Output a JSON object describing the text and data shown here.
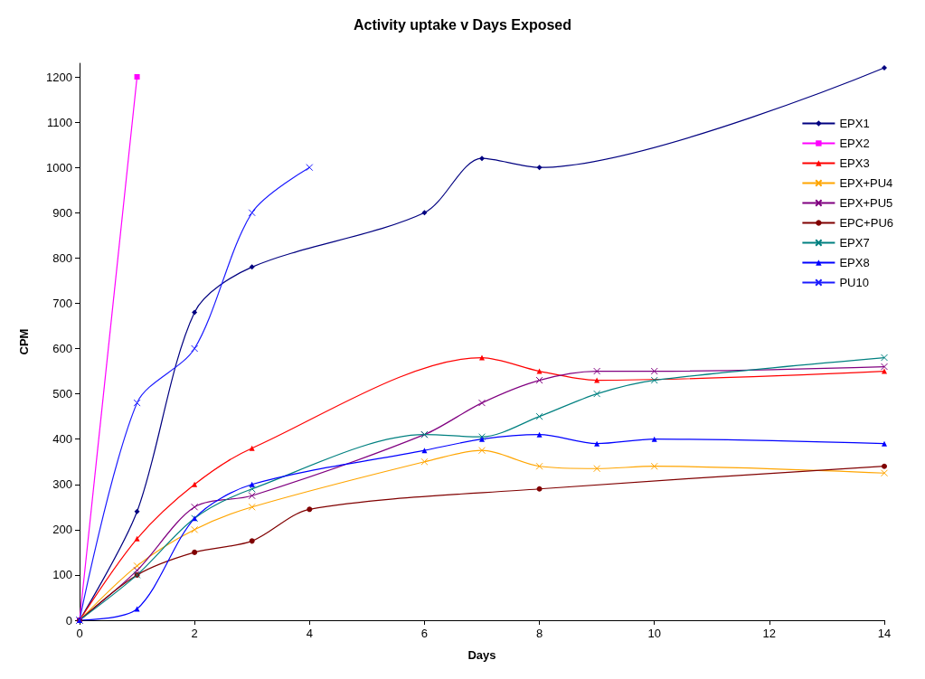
{
  "chart_data": {
    "type": "line",
    "title": "Activity uptake v Days Exposed",
    "xlabel": "Days",
    "ylabel": "CPM",
    "xlim": [
      0,
      14
    ],
    "xticks": [
      0,
      2,
      4,
      6,
      8,
      10,
      12,
      14
    ],
    "ylim": [
      0,
      1230
    ],
    "yticks": [
      0,
      100,
      200,
      300,
      400,
      500,
      600,
      700,
      800,
      900,
      1000,
      1100,
      1200
    ],
    "grid": false,
    "legend": "top right",
    "line_style": "solid",
    "series": [
      {
        "name": "EPX1",
        "color": "#000080",
        "marker": "diamond",
        "x": [
          0,
          1,
          2,
          3,
          6,
          7,
          8,
          14
        ],
        "values": [
          0,
          240,
          680,
          780,
          900,
          1020,
          1000,
          1220
        ]
      },
      {
        "name": "EPX2",
        "color": "#ff00ff",
        "marker": "square",
        "x": [
          0,
          1
        ],
        "values": [
          0,
          1200
        ]
      },
      {
        "name": "EPX3",
        "color": "#ff0000",
        "marker": "triangle",
        "x": [
          0,
          1,
          2,
          3,
          7,
          8,
          9,
          14
        ],
        "values": [
          0,
          180,
          300,
          380,
          580,
          550,
          530,
          550
        ]
      },
      {
        "name": "EPX+PU4",
        "color": "#ffa500",
        "marker": "cross",
        "x": [
          0,
          1,
          2,
          3,
          6,
          7,
          8,
          9,
          10,
          14
        ],
        "values": [
          0,
          120,
          200,
          250,
          350,
          375,
          340,
          335,
          340,
          325
        ]
      },
      {
        "name": "EPX+PU5",
        "color": "#800080",
        "marker": "cross",
        "x": [
          0,
          1,
          2,
          3,
          6,
          7,
          8,
          9,
          10,
          14
        ],
        "values": [
          0,
          110,
          250,
          275,
          410,
          480,
          530,
          550,
          550,
          560
        ]
      },
      {
        "name": "EPC+PU6",
        "color": "#800000",
        "marker": "circle",
        "x": [
          0,
          1,
          2,
          3,
          4,
          8,
          14
        ],
        "values": [
          0,
          100,
          150,
          175,
          245,
          290,
          340
        ]
      },
      {
        "name": "EPX7",
        "color": "#008080",
        "marker": "cross",
        "x": [
          0,
          1,
          2,
          3,
          6,
          7,
          8,
          9,
          10,
          14
        ],
        "values": [
          0,
          100,
          225,
          290,
          410,
          405,
          450,
          500,
          530,
          580
        ]
      },
      {
        "name": "EPX8",
        "color": "#0000ff",
        "marker": "triangle",
        "x": [
          0,
          1,
          2,
          3,
          6,
          7,
          8,
          9,
          10,
          14
        ],
        "values": [
          0,
          25,
          225,
          300,
          375,
          400,
          410,
          390,
          400,
          390
        ]
      },
      {
        "name": "PU10",
        "color": "#1a1aff",
        "marker": "cross",
        "x": [
          0,
          1,
          2,
          3,
          4
        ],
        "values": [
          0,
          480,
          600,
          900,
          1000
        ]
      }
    ]
  }
}
